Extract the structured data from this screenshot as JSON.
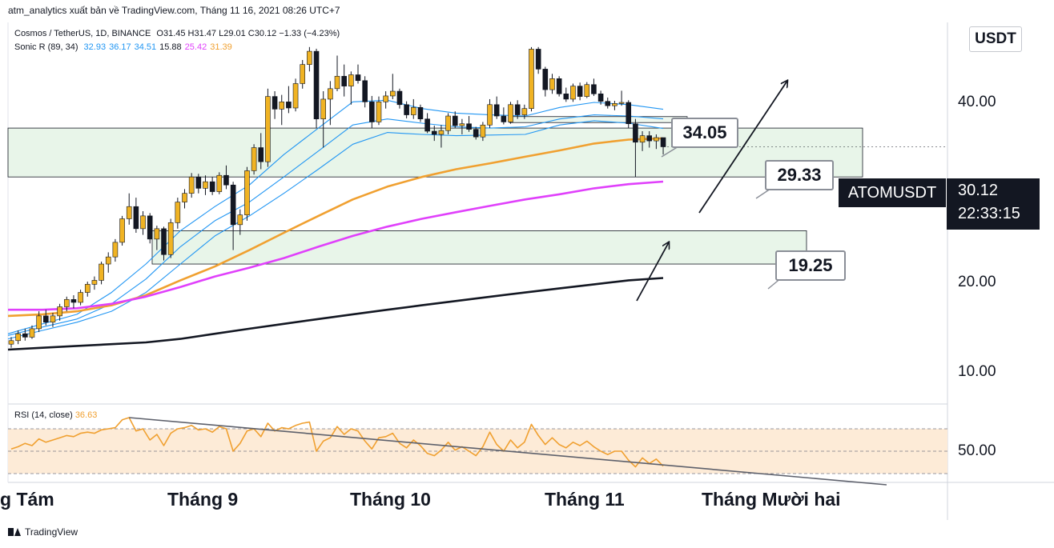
{
  "header": {
    "publisher": "atm_analytics xuất bản về TradingView.com, Tháng 11 16, 2021 08:26 UTC+7"
  },
  "legend": {
    "main": "Cosmos / TetherUS, 1D, BINANCE",
    "ohlc": "O31.45  H31.47  L29.01  C30.12  −1.33 (−4.23%)",
    "indicator_name": "Sonic R (89, 34)",
    "indicator_values": [
      {
        "text": "32.93",
        "color": "#2196f3"
      },
      {
        "text": "36.17",
        "color": "#2196f3"
      },
      {
        "text": "34.51",
        "color": "#2196f3"
      },
      {
        "text": "15.88",
        "color": "#131722"
      },
      {
        "text": "25.42",
        "color": "#e040fb"
      },
      {
        "text": "31.39",
        "color": "#f0a030"
      }
    ],
    "rsi_name": "RSI (14, close)",
    "rsi_value": "36.63",
    "rsi_color": "#f0a030"
  },
  "axis": {
    "currency": "USDT",
    "y_ticks": [
      "40.00",
      "20.00",
      "10.00"
    ],
    "rsi_tick": "50.00",
    "x_ticks": [
      "g Tám",
      "Tháng 9",
      "Tháng 10",
      "Tháng 11",
      "Tháng Mười hai"
    ]
  },
  "callouts": [
    "34.05",
    "29.33",
    "19.25"
  ],
  "price_badge": {
    "symbol": "ATOMUSDT",
    "price": "30.12",
    "countdown": "22:33:15"
  },
  "footer": {
    "brand": "TradingView"
  },
  "colors": {
    "up": "#f0b323",
    "down": "#131722",
    "ema_blue": "#2196f3",
    "ema_orange": "#f0a030",
    "ema_magenta": "#e040fb",
    "ema_black": "#131722",
    "zone_fill": "#e8f5e9",
    "rsi_band": "#fdebd7"
  },
  "chart_data": {
    "type": "candlestick",
    "title": "Cosmos / TetherUS, 1D, BINANCE",
    "y_scale": "log",
    "ylim": [
      8.5,
      52
    ],
    "y_ticks": [
      10,
      20,
      40
    ],
    "x_ticks": [
      "g Tám",
      "Tháng 9",
      "Tháng 10",
      "Tháng 11",
      "Tháng Mười hai"
    ],
    "zones": [
      {
        "low": 26.0,
        "high": 33.0
      },
      {
        "low": 17.0,
        "high": 20.0
      },
      {
        "low": 33.9,
        "high": 34.9
      }
    ],
    "levels": [
      34.05,
      29.33,
      19.25
    ],
    "last": 30.12,
    "candles": [
      [
        11.5,
        11.9,
        11.3,
        11.7
      ],
      [
        11.7,
        12.3,
        11.5,
        12.1
      ],
      [
        12.1,
        12.4,
        11.7,
        11.9
      ],
      [
        11.9,
        12.6,
        11.8,
        12.4
      ],
      [
        12.4,
        13.5,
        12.2,
        13.2
      ],
      [
        13.2,
        13.6,
        12.6,
        12.8
      ],
      [
        12.8,
        13.4,
        12.5,
        13.2
      ],
      [
        13.2,
        14.0,
        12.9,
        13.8
      ],
      [
        13.8,
        14.5,
        13.5,
        14.3
      ],
      [
        14.3,
        14.6,
        13.7,
        14.1
      ],
      [
        14.1,
        15.0,
        13.9,
        14.8
      ],
      [
        14.8,
        15.6,
        14.5,
        15.4
      ],
      [
        15.4,
        16.0,
        15.0,
        15.7
      ],
      [
        15.7,
        17.2,
        15.4,
        17.0
      ],
      [
        17.0,
        18.0,
        16.3,
        17.6
      ],
      [
        17.6,
        19.2,
        17.2,
        18.9
      ],
      [
        18.9,
        21.5,
        18.6,
        21.2
      ],
      [
        21.2,
        24.0,
        20.6,
        22.5
      ],
      [
        22.5,
        23.5,
        19.8,
        20.2
      ],
      [
        20.2,
        22.0,
        19.6,
        21.5
      ],
      [
        21.5,
        21.8,
        18.8,
        19.2
      ],
      [
        19.2,
        20.5,
        18.2,
        20.2
      ],
      [
        20.2,
        20.4,
        17.3,
        17.8
      ],
      [
        17.8,
        21.2,
        17.5,
        20.8
      ],
      [
        20.8,
        23.5,
        20.2,
        23.0
      ],
      [
        23.0,
        24.5,
        22.3,
        24.0
      ],
      [
        24.0,
        26.5,
        23.5,
        26.0
      ],
      [
        26.0,
        26.4,
        24.0,
        24.6
      ],
      [
        24.6,
        26.2,
        23.8,
        25.4
      ],
      [
        25.4,
        26.0,
        23.8,
        24.2
      ],
      [
        24.2,
        26.6,
        23.9,
        26.2
      ],
      [
        26.2,
        27.5,
        24.5,
        25.0
      ],
      [
        25.0,
        25.4,
        18.2,
        20.6
      ],
      [
        20.6,
        22.2,
        19.6,
        21.6
      ],
      [
        21.6,
        27.3,
        21.0,
        26.8
      ],
      [
        26.8,
        30.5,
        26.3,
        30.0
      ],
      [
        30.0,
        32.2,
        27.0,
        28.0
      ],
      [
        28.0,
        40.0,
        27.3,
        38.5
      ],
      [
        38.5,
        39.5,
        34.5,
        36.2
      ],
      [
        36.2,
        38.8,
        33.5,
        37.5
      ],
      [
        37.5,
        40.5,
        35.5,
        36.4
      ],
      [
        36.4,
        42.0,
        35.8,
        41.0
      ],
      [
        41.0,
        46.0,
        40.0,
        45.0
      ],
      [
        45.0,
        49.0,
        43.5,
        48.0
      ],
      [
        48.0,
        48.6,
        33.0,
        34.5
      ],
      [
        34.5,
        39.5,
        30.0,
        38.0
      ],
      [
        38.0,
        41.5,
        33.5,
        40.0
      ],
      [
        40.0,
        47.0,
        39.5,
        42.5
      ],
      [
        42.5,
        45.0,
        38.5,
        40.5
      ],
      [
        40.5,
        43.5,
        37.0,
        42.8
      ],
      [
        42.8,
        45.0,
        41.0,
        41.6
      ],
      [
        41.6,
        42.5,
        36.5,
        37.5
      ],
      [
        37.5,
        38.6,
        33.0,
        34.0
      ],
      [
        34.0,
        38.5,
        33.5,
        37.5
      ],
      [
        37.5,
        39.5,
        36.3,
        38.6
      ],
      [
        38.6,
        43.0,
        38.0,
        39.5
      ],
      [
        39.5,
        40.0,
        36.3,
        37.0
      ],
      [
        37.0,
        37.6,
        34.6,
        35.2
      ],
      [
        35.2,
        38.0,
        34.5,
        36.5
      ],
      [
        36.5,
        37.0,
        34.0,
        34.5
      ],
      [
        34.5,
        35.5,
        32.2,
        32.5
      ],
      [
        32.5,
        33.4,
        31.0,
        32.0
      ],
      [
        32.0,
        33.5,
        30.0,
        32.6
      ],
      [
        32.6,
        35.5,
        32.0,
        35.0
      ],
      [
        35.0,
        35.8,
        33.0,
        33.4
      ],
      [
        33.4,
        34.5,
        32.0,
        33.7
      ],
      [
        33.7,
        35.0,
        32.4,
        32.8
      ],
      [
        32.8,
        33.2,
        31.2,
        31.6
      ],
      [
        31.6,
        34.0,
        31.0,
        33.5
      ],
      [
        33.5,
        38.0,
        33.0,
        37.0
      ],
      [
        37.0,
        38.5,
        34.5,
        35.0
      ],
      [
        35.0,
        36.5,
        33.6,
        34.0
      ],
      [
        34.0,
        37.5,
        33.7,
        37.0
      ],
      [
        37.0,
        37.8,
        34.5,
        35.2
      ],
      [
        35.2,
        37.0,
        34.5,
        36.3
      ],
      [
        36.3,
        49.0,
        35.8,
        48.5
      ],
      [
        48.5,
        49.0,
        43.0,
        44.0
      ],
      [
        44.0,
        44.5,
        38.5,
        39.8
      ],
      [
        39.8,
        43.0,
        39.0,
        42.0
      ],
      [
        42.0,
        42.5,
        38.5,
        39.0
      ],
      [
        39.0,
        40.2,
        37.5,
        38.0
      ],
      [
        38.0,
        41.0,
        37.5,
        40.5
      ],
      [
        40.5,
        41.2,
        37.8,
        38.5
      ],
      [
        38.5,
        41.3,
        38.2,
        40.8
      ],
      [
        40.8,
        42.0,
        38.6,
        39.0
      ],
      [
        39.0,
        39.6,
        37.0,
        37.6
      ],
      [
        37.6,
        38.3,
        36.3,
        36.8
      ],
      [
        36.8,
        37.7,
        36.0,
        37.2
      ],
      [
        37.2,
        39.6,
        36.8,
        37.4
      ],
      [
        37.4,
        37.8,
        33.0,
        33.7
      ],
      [
        33.7,
        34.5,
        26.0,
        30.8
      ],
      [
        30.8,
        32.5,
        29.5,
        31.8
      ],
      [
        31.8,
        32.5,
        30.0,
        31.0
      ],
      [
        31.0,
        32.0,
        29.8,
        31.5
      ],
      [
        31.5,
        31.5,
        29.0,
        30.12
      ]
    ],
    "emas": [
      {
        "color": "#2196f3",
        "values": [
          12.1,
          12.7,
          13.3,
          14.8,
          17.0,
          20.0,
          22.5,
          25.0,
          29.0,
          33.0,
          37.5,
          37.8,
          36.3,
          35.5,
          35.2,
          35.0,
          36.5,
          37.4,
          37.0,
          36.17
        ]
      },
      {
        "color": "#2196f3",
        "values": [
          12.0,
          12.5,
          13.0,
          14.0,
          15.8,
          18.5,
          21.0,
          23.0,
          26.0,
          29.5,
          33.5,
          34.5,
          33.8,
          33.2,
          33.0,
          33.2,
          34.5,
          35.2,
          35.0,
          34.51
        ]
      },
      {
        "color": "#2196f3",
        "values": [
          11.8,
          12.3,
          12.8,
          13.5,
          14.8,
          17.0,
          19.5,
          21.5,
          24.0,
          27.0,
          30.5,
          32.3,
          32.0,
          31.8,
          31.9,
          32.0,
          33.5,
          34.2,
          33.8,
          32.93
        ]
      },
      {
        "color": "#f0a030",
        "values": [
          13.2,
          13.3,
          13.5,
          13.9,
          14.6,
          15.7,
          16.8,
          18.2,
          19.8,
          21.5,
          23.3,
          24.8,
          26.0,
          27.0,
          27.8,
          28.7,
          29.6,
          30.6,
          31.2,
          31.39
        ]
      },
      {
        "color": "#e040fb",
        "values": [
          13.6,
          13.6,
          13.7,
          14.0,
          14.5,
          15.2,
          16.0,
          16.7,
          17.5,
          18.5,
          19.5,
          20.4,
          21.2,
          21.9,
          22.6,
          23.3,
          23.9,
          24.6,
          25.1,
          25.42
        ]
      },
      {
        "color": "#131722",
        "values": [
          11.2,
          11.3,
          11.4,
          11.5,
          11.6,
          11.8,
          12.1,
          12.4,
          12.7,
          13.0,
          13.3,
          13.6,
          13.9,
          14.2,
          14.5,
          14.8,
          15.1,
          15.4,
          15.7,
          15.88
        ]
      }
    ],
    "rsi": {
      "ylim": [
        0,
        100
      ],
      "band": [
        30,
        70
      ],
      "tick": 50,
      "values": [
        52,
        54,
        57,
        55,
        61,
        58,
        60,
        62,
        64,
        63,
        66,
        67,
        66,
        69,
        70,
        71,
        78,
        80,
        68,
        70,
        60,
        65,
        55,
        66,
        70,
        71,
        73,
        69,
        70,
        67,
        72,
        70,
        50,
        57,
        68,
        70,
        63,
        75,
        68,
        71,
        70,
        73,
        75,
        76,
        50,
        59,
        62,
        72,
        65,
        70,
        68,
        59,
        52,
        62,
        63,
        66,
        57,
        53,
        60,
        55,
        48,
        46,
        51,
        58,
        51,
        54,
        50,
        46,
        54,
        67,
        56,
        50,
        60,
        53,
        58,
        74,
        64,
        56,
        62,
        56,
        53,
        58,
        55,
        59,
        54,
        50,
        47,
        50,
        50,
        42,
        36,
        44,
        39,
        43,
        36.63
      ],
      "trendline": [
        [
          17,
          80
        ],
        [
          96,
          20
        ]
      ]
    }
  }
}
